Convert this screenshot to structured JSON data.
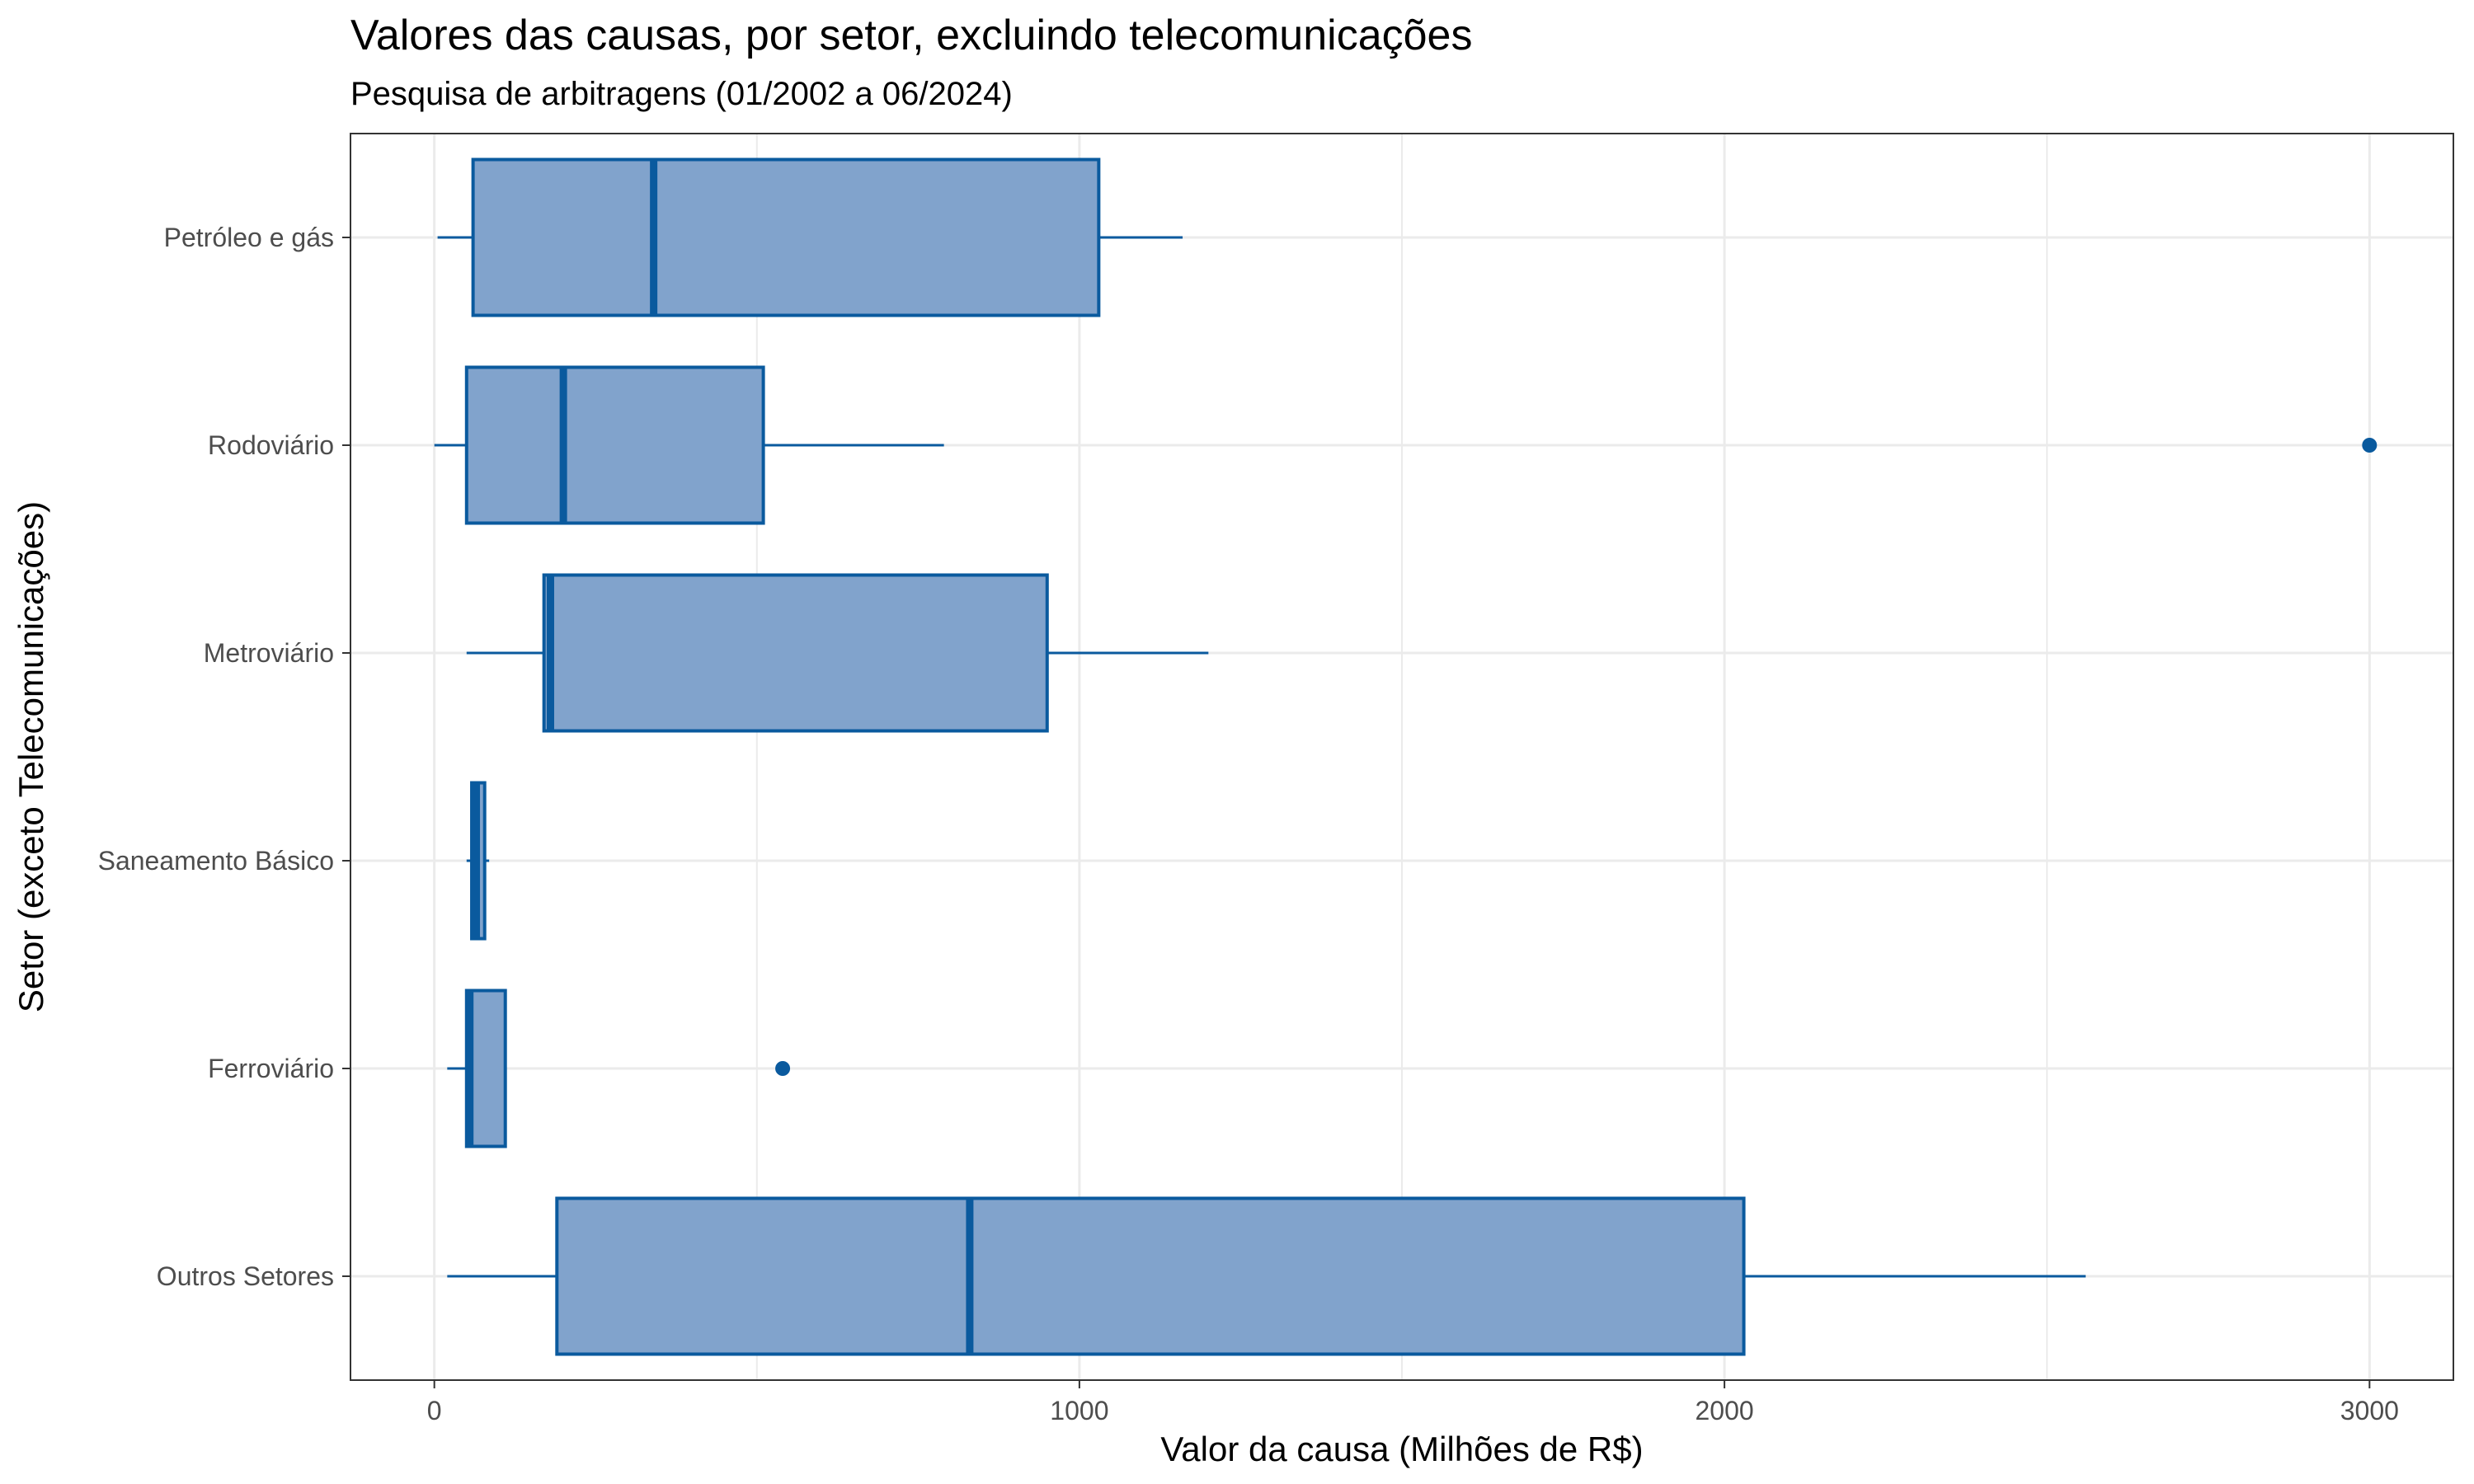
{
  "chart_data": {
    "type": "boxplot",
    "orientation": "horizontal",
    "title": "Valores das causas, por setor, excluindo telecomunicações",
    "subtitle": "Pesquisa de arbitragens (01/2002 a 06/2024)",
    "xlabel": "Valor da causa (Milhões de R$)",
    "ylabel": "Setor (exceto Telecomunicações)",
    "xlim": [
      -130,
      3130
    ],
    "xticks": [
      0,
      1000,
      2000,
      3000
    ],
    "xtick_labels": [
      "0",
      "1000",
      "2000",
      "3000"
    ],
    "grid": true,
    "categories": [
      "Petróleo e gás",
      "Rodoviário",
      "Metroviário",
      "Saneamento Básico",
      "Ferroviário",
      "Outros Setores"
    ],
    "boxes": [
      {
        "category": "Petróleo e gás",
        "whisker_low": 5,
        "q1": 60,
        "median": 340,
        "q3": 1030,
        "whisker_high": 1160,
        "outliers": []
      },
      {
        "category": "Rodoviário",
        "whisker_low": 0,
        "q1": 50,
        "median": 200,
        "q3": 510,
        "whisker_high": 790,
        "outliers": [
          3000
        ]
      },
      {
        "category": "Metroviário",
        "whisker_low": 50,
        "q1": 170,
        "median": 180,
        "q3": 950,
        "whisker_high": 1200,
        "outliers": []
      },
      {
        "category": "Saneamento Básico",
        "whisker_low": 50,
        "q1": 58,
        "median": 65,
        "q3": 78,
        "whisker_high": 85,
        "outliers": []
      },
      {
        "category": "Ferroviário",
        "whisker_low": 20,
        "q1": 50,
        "median": 55,
        "q3": 110,
        "whisker_high": 110,
        "outliers": [
          540
        ]
      },
      {
        "category": "Outros Setores",
        "whisker_low": 20,
        "q1": 190,
        "median": 830,
        "q3": 2030,
        "whisker_high": 2560,
        "outliers": []
      }
    ],
    "colors": {
      "fill": "#81a3cc",
      "stroke": "#0a5a9e",
      "grid": "#ebebeb",
      "panel_border": "#333333"
    }
  }
}
